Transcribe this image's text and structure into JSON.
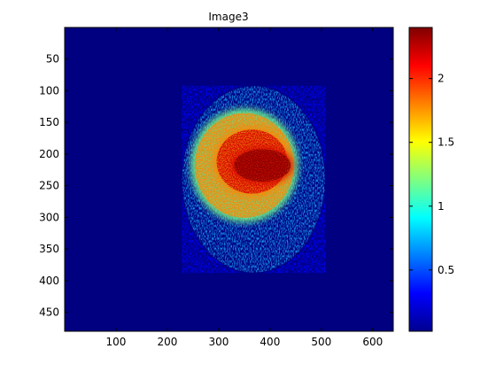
{
  "chart_data": {
    "type": "heatmap",
    "title": "Image3",
    "xlabel": "",
    "ylabel": "",
    "colormap": "jet",
    "image_size": {
      "width": 640,
      "height": 480
    },
    "xlim": [
      0,
      640
    ],
    "ylim": [
      480,
      0
    ],
    "x_ticks": [
      100,
      200,
      300,
      400,
      500,
      600
    ],
    "y_ticks": [
      50,
      100,
      150,
      200,
      250,
      300,
      350,
      400,
      450
    ],
    "colorbar": {
      "range": [
        0.02,
        2.4
      ],
      "ticks": [
        0.5,
        1,
        1.5,
        2
      ]
    },
    "background_value": 0.02,
    "regions": [
      {
        "shape": "ellipse",
        "center": [
          368,
          240
        ],
        "radii": [
          140,
          148
        ],
        "value_range": [
          0.3,
          1.0
        ],
        "texture": "speckle-horizontal-streaks"
      },
      {
        "shape": "ellipse",
        "center": [
          350,
          218
        ],
        "radii": [
          105,
          90
        ],
        "value_range": [
          1.2,
          1.8
        ]
      },
      {
        "shape": "ellipse",
        "center": [
          365,
          212
        ],
        "radii": [
          75,
          55
        ],
        "value_range": [
          1.8,
          2.2
        ]
      },
      {
        "shape": "ellipse",
        "center": [
          385,
          218
        ],
        "radii": [
          60,
          28
        ],
        "value_range": [
          2.2,
          2.4
        ]
      }
    ]
  }
}
